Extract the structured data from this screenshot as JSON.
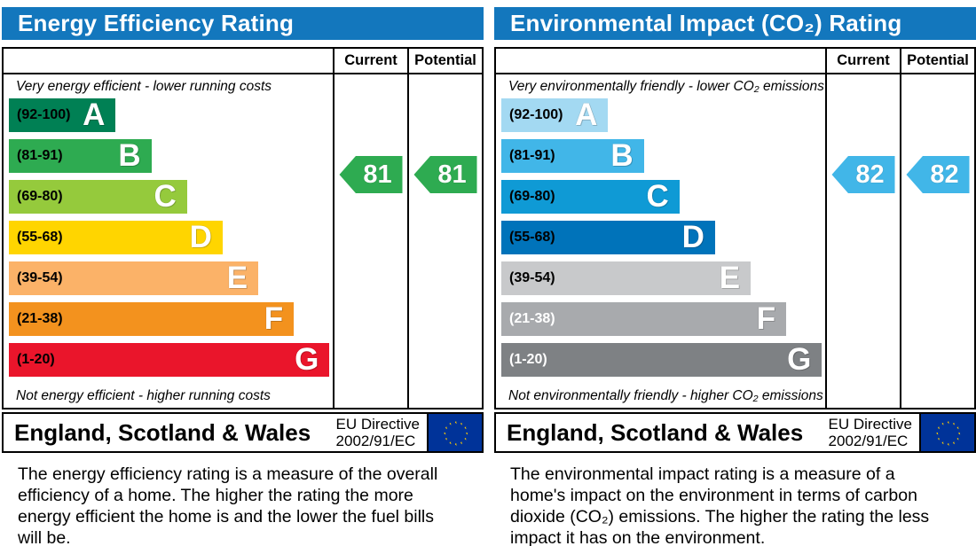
{
  "chart_data": [
    {
      "type": "bar",
      "title": "Energy Efficiency Rating",
      "categories": [
        "A (92-100)",
        "B (81-91)",
        "C (69-80)",
        "D (55-68)",
        "E (39-54)",
        "F (21-38)",
        "G (1-20)"
      ],
      "series": [
        {
          "name": "Current",
          "values": [
            81
          ]
        },
        {
          "name": "Potential",
          "values": [
            81
          ]
        }
      ],
      "value_range": [
        1,
        100
      ],
      "current_band": "B",
      "potential_band": "B",
      "legend_position": "columns right (Current / Potential)",
      "band_colors": [
        "#008054",
        "#2eab51",
        "#95ca3c",
        "#ffd500",
        "#fbb268",
        "#f3921e",
        "#ea152b"
      ]
    },
    {
      "type": "bar",
      "title": "Environmental Impact (CO₂) Rating",
      "categories": [
        "A (92-100)",
        "B (81-91)",
        "C (69-80)",
        "D (55-68)",
        "E (39-54)",
        "F (21-38)",
        "G (1-20)"
      ],
      "series": [
        {
          "name": "Current",
          "values": [
            82
          ]
        },
        {
          "name": "Potential",
          "values": [
            82
          ]
        }
      ],
      "value_range": [
        1,
        100
      ],
      "current_band": "B",
      "potential_band": "B",
      "legend_position": "columns right (Current / Potential)",
      "band_colors": [
        "#a3d9f2",
        "#41b6e8",
        "#0f9ad5",
        "#0073ba",
        "#c8c9cb",
        "#a8aaad",
        "#7e8184"
      ]
    }
  ],
  "panels": [
    {
      "title": "Energy Efficiency Rating",
      "col_current": "Current",
      "col_potential": "Potential",
      "top_caption": "Very energy efficient - lower running costs",
      "bottom_caption": "Not energy efficient - higher running costs",
      "bands": [
        {
          "range": "(92-100)",
          "letter": "A",
          "color": "#008054",
          "range_color": "#000000",
          "width_pct": 33
        },
        {
          "range": "(81-91)",
          "letter": "B",
          "color": "#2eab51",
          "range_color": "#000000",
          "width_pct": 44
        },
        {
          "range": "(69-80)",
          "letter": "C",
          "color": "#95ca3c",
          "range_color": "#000000",
          "width_pct": 55
        },
        {
          "range": "(55-68)",
          "letter": "D",
          "color": "#ffd500",
          "range_color": "#000000",
          "width_pct": 66
        },
        {
          "range": "(39-54)",
          "letter": "E",
          "color": "#fbb268",
          "range_color": "#000000",
          "width_pct": 77
        },
        {
          "range": "(21-38)",
          "letter": "F",
          "color": "#f3921e",
          "range_color": "#000000",
          "width_pct": 88
        },
        {
          "range": "(1-20)",
          "letter": "G",
          "color": "#ea152b",
          "range_color": "#000000",
          "width_pct": 99
        }
      ],
      "current": {
        "value": "81",
        "color": "#2eab51"
      },
      "potential": {
        "value": "81",
        "color": "#2eab51"
      },
      "footer": {
        "region": "England, Scotland & Wales",
        "directive_line1": "EU Directive",
        "directive_line2": "2002/91/EC"
      },
      "description": "The energy efficiency rating is a measure of the overall efficiency of a home. The higher the rating the more energy efficient the home is and the lower the fuel bills will be."
    },
    {
      "title": "Environmental Impact (CO₂) Rating",
      "col_current": "Current",
      "col_potential": "Potential",
      "top_caption": "Very environmentally friendly - lower CO₂ emissions",
      "bottom_caption": "Not environmentally friendly - higher CO₂ emissions",
      "bands": [
        {
          "range": "(92-100)",
          "letter": "A",
          "color": "#a3d9f2",
          "range_color": "#000000",
          "width_pct": 33
        },
        {
          "range": "(81-91)",
          "letter": "B",
          "color": "#41b6e8",
          "range_color": "#000000",
          "width_pct": 44
        },
        {
          "range": "(69-80)",
          "letter": "C",
          "color": "#0f9ad5",
          "range_color": "#000000",
          "width_pct": 55
        },
        {
          "range": "(55-68)",
          "letter": "D",
          "color": "#0073ba",
          "range_color": "#000000",
          "width_pct": 66
        },
        {
          "range": "(39-54)",
          "letter": "E",
          "color": "#c8c9cb",
          "range_color": "#000000",
          "width_pct": 77
        },
        {
          "range": "(21-38)",
          "letter": "F",
          "color": "#a8aaad",
          "range_color": "#ffffff",
          "width_pct": 88
        },
        {
          "range": "(1-20)",
          "letter": "G",
          "color": "#7e8184",
          "range_color": "#ffffff",
          "width_pct": 99
        }
      ],
      "current": {
        "value": "82",
        "color": "#41b6e8"
      },
      "potential": {
        "value": "82",
        "color": "#41b6e8"
      },
      "footer": {
        "region": "England, Scotland & Wales",
        "directive_line1": "EU Directive",
        "directive_line2": "2002/91/EC"
      },
      "description": "The environmental impact rating is a measure of a home's impact on the environment in terms of carbon dioxide (CO₂) emissions. The higher the rating the less impact it has on the environment."
    }
  ]
}
